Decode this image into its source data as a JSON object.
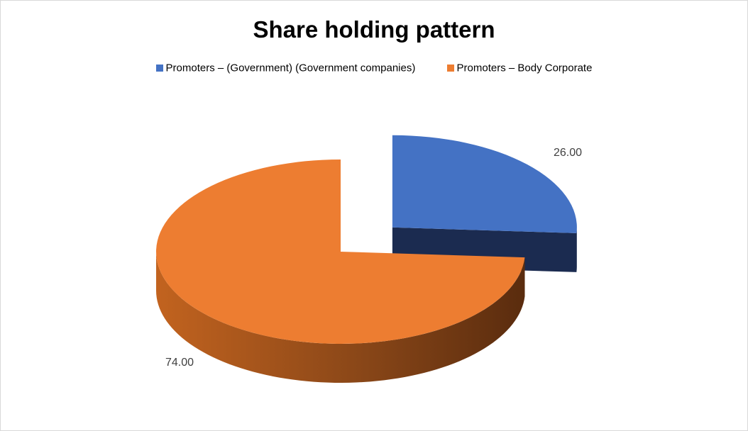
{
  "chart_data": {
    "type": "pie",
    "title": "Share holding pattern",
    "legend_position": "top",
    "categories": [
      "Promoters – (Government) (Government companies)",
      "Promoters – Body Corporate"
    ],
    "values": [
      26.0,
      74.0
    ],
    "data_labels": [
      "26.00",
      "74.00"
    ],
    "colors": [
      "#4472C4",
      "#ED7D31"
    ],
    "side_colors": [
      "#1B2B50",
      "#8A4718"
    ],
    "exploded": [
      true,
      false
    ]
  }
}
